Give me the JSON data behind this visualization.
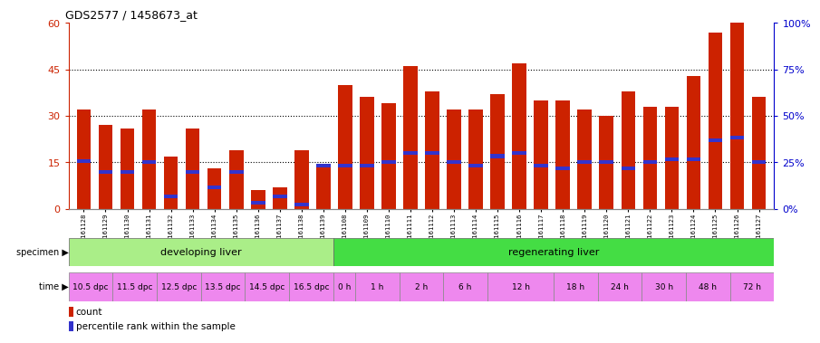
{
  "title": "GDS2577 / 1458673_at",
  "samples": [
    "GSM161128",
    "GSM161129",
    "GSM161130",
    "GSM161131",
    "GSM161132",
    "GSM161133",
    "GSM161134",
    "GSM161135",
    "GSM161136",
    "GSM161137",
    "GSM161138",
    "GSM161139",
    "GSM161108",
    "GSM161109",
    "GSM161110",
    "GSM161111",
    "GSM161112",
    "GSM161113",
    "GSM161114",
    "GSM161115",
    "GSM161116",
    "GSM161117",
    "GSM161118",
    "GSM161119",
    "GSM161120",
    "GSM161121",
    "GSM161122",
    "GSM161123",
    "GSM161124",
    "GSM161125",
    "GSM161126",
    "GSM161127"
  ],
  "counts": [
    32,
    27,
    26,
    32,
    17,
    26,
    13,
    19,
    6,
    7,
    19,
    14,
    40,
    36,
    34,
    46,
    38,
    32,
    32,
    37,
    47,
    35,
    35,
    32,
    30,
    38,
    33,
    33,
    43,
    57,
    60,
    36
  ],
  "percentiles": [
    15.5,
    12,
    12,
    15,
    4,
    12,
    7,
    12,
    2,
    4,
    1.5,
    14,
    14,
    14,
    15,
    18,
    18,
    15,
    14,
    17,
    18,
    14,
    13,
    15,
    15,
    13,
    15,
    16,
    16,
    22,
    23,
    15
  ],
  "bar_color": "#cc2200",
  "marker_color": "#3333cc",
  "ylim_left": [
    0,
    60
  ],
  "ylim_right": [
    0,
    100
  ],
  "yticks_left": [
    0,
    15,
    30,
    45,
    60
  ],
  "yticks_right": [
    0,
    25,
    50,
    75,
    100
  ],
  "ytick_labels_right": [
    "0%",
    "25%",
    "50%",
    "75%",
    "100%"
  ],
  "hlines": [
    15,
    30,
    45
  ],
  "specimen_groups": [
    {
      "label": "developing liver",
      "start": 0,
      "end": 12,
      "color": "#aaee88"
    },
    {
      "label": "regenerating liver",
      "start": 12,
      "end": 32,
      "color": "#44dd44"
    }
  ],
  "time_groups": [
    {
      "label": "10.5 dpc",
      "start": 0,
      "end": 2
    },
    {
      "label": "11.5 dpc",
      "start": 2,
      "end": 4
    },
    {
      "label": "12.5 dpc",
      "start": 4,
      "end": 6
    },
    {
      "label": "13.5 dpc",
      "start": 6,
      "end": 8
    },
    {
      "label": "14.5 dpc",
      "start": 8,
      "end": 10
    },
    {
      "label": "16.5 dpc",
      "start": 10,
      "end": 12
    },
    {
      "label": "0 h",
      "start": 12,
      "end": 13
    },
    {
      "label": "1 h",
      "start": 13,
      "end": 15
    },
    {
      "label": "2 h",
      "start": 15,
      "end": 17
    },
    {
      "label": "6 h",
      "start": 17,
      "end": 19
    },
    {
      "label": "12 h",
      "start": 19,
      "end": 22
    },
    {
      "label": "18 h",
      "start": 22,
      "end": 24
    },
    {
      "label": "24 h",
      "start": 24,
      "end": 26
    },
    {
      "label": "30 h",
      "start": 26,
      "end": 28
    },
    {
      "label": "48 h",
      "start": 28,
      "end": 30
    },
    {
      "label": "72 h",
      "start": 30,
      "end": 32
    }
  ],
  "time_color_pink": "#ee88ee",
  "time_color_white": "#ffffff",
  "axis_color_left": "#cc2200",
  "axis_color_right": "#0000cc",
  "bg_color": "#ffffff"
}
